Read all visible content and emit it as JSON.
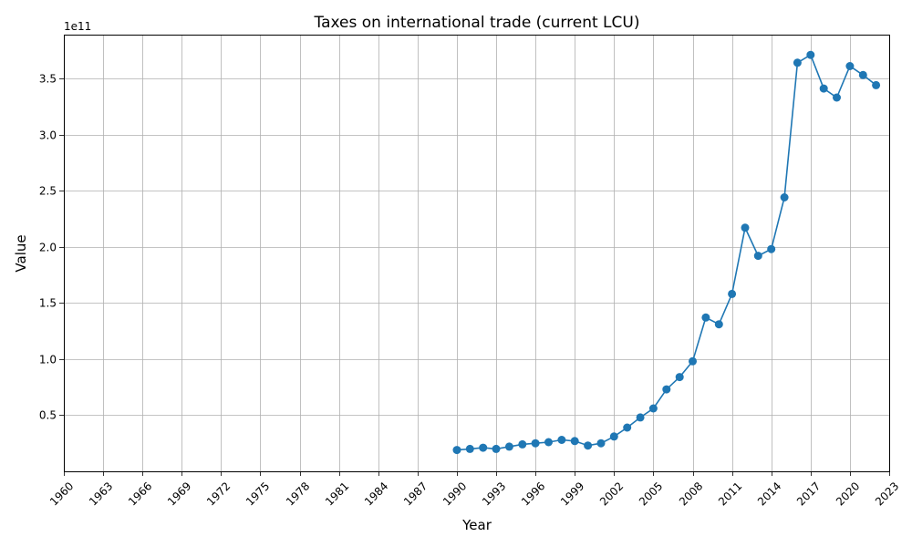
{
  "chart_data": {
    "type": "line",
    "title": "Taxes on international trade (current LCU)",
    "xlabel": "Year",
    "ylabel": "Value",
    "y_offset_label": "1e11",
    "y_scale_exponent": 11,
    "xlim": [
      1960,
      2023
    ],
    "ylim": [
      0,
      3.89
    ],
    "grid": true,
    "legend": "none",
    "line_color": "#1f77b4",
    "marker": "circle",
    "x_ticks": [
      1960,
      1963,
      1966,
      1969,
      1972,
      1975,
      1978,
      1981,
      1984,
      1987,
      1990,
      1993,
      1996,
      1999,
      2002,
      2005,
      2008,
      2011,
      2014,
      2017,
      2020,
      2023
    ],
    "y_ticks": [
      0.5,
      1.0,
      1.5,
      2.0,
      2.5,
      3.0,
      3.5
    ],
    "y_tick_labels": [
      "0.5",
      "1.0",
      "1.5",
      "2.0",
      "2.5",
      "3.0",
      "3.5"
    ],
    "series": [
      {
        "x": [
          1990,
          1991,
          1992,
          1993,
          1994,
          1995,
          1996,
          1997,
          1998,
          1999,
          2000,
          2001,
          2002,
          2003,
          2004,
          2005,
          2006,
          2007,
          2008,
          2009,
          2010,
          2011,
          2012,
          2013,
          2014,
          2015,
          2016,
          2017,
          2018,
          2019,
          2020,
          2021,
          2022
        ],
        "y": [
          0.19,
          0.2,
          0.21,
          0.2,
          0.22,
          0.24,
          0.25,
          0.26,
          0.28,
          0.27,
          0.23,
          0.25,
          0.31,
          0.39,
          0.48,
          0.56,
          0.73,
          0.84,
          0.98,
          1.37,
          1.31,
          1.58,
          2.17,
          1.92,
          1.98,
          2.44,
          3.64,
          3.71,
          3.41,
          3.33,
          3.61,
          3.53,
          3.44
        ]
      }
    ]
  }
}
